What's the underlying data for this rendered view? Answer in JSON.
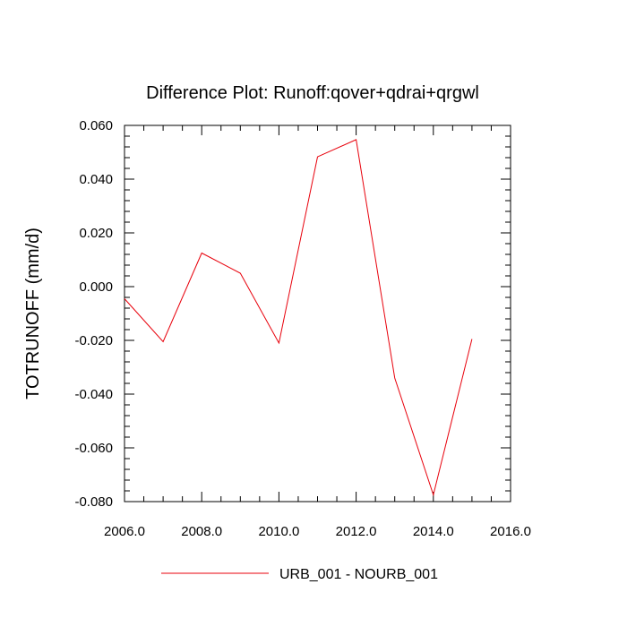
{
  "chart_data": {
    "type": "line",
    "title": "Difference Plot: Runoff:qover+qdrai+qrgwl",
    "xlabel": "",
    "ylabel": "TOTRUNOFF  (mm/d)",
    "xlim": [
      2006,
      2016
    ],
    "ylim": [
      -0.08,
      0.06
    ],
    "x_ticks": [
      2006,
      2008,
      2010,
      2012,
      2014,
      2016
    ],
    "x_tick_labels": [
      "2006.0",
      "2008.0",
      "2010.0",
      "2012.0",
      "2014.0",
      "2016.0"
    ],
    "y_ticks": [
      0.06,
      0.04,
      0.02,
      0.0,
      -0.02,
      -0.04,
      -0.06,
      -0.08
    ],
    "y_tick_labels": [
      "0.060",
      "0.040",
      "0.020",
      "0.000",
      "-0.020",
      "-0.040",
      "-0.060",
      "-0.080"
    ],
    "grid": false,
    "legend_position": "bottom-center",
    "series": [
      {
        "name": "URB_001 - NOURB_001",
        "color": "#e8000b",
        "x": [
          2006,
          2007,
          2008,
          2009,
          2010,
          2011,
          2012,
          2013,
          2014,
          2015
        ],
        "y": [
          -0.0045,
          -0.0205,
          0.0125,
          0.005,
          -0.021,
          0.0483,
          0.0547,
          -0.034,
          -0.0775,
          -0.0195
        ]
      }
    ]
  }
}
